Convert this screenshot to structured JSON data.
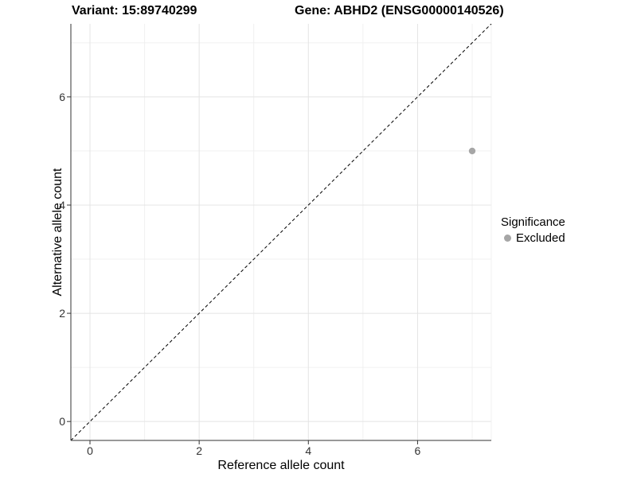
{
  "titles": {
    "variant": "Variant: 15:89740299",
    "gene": "Gene: ABHD2 (ENSG00000140526)"
  },
  "chart_data": {
    "type": "scatter",
    "xlabel": "Reference allele count",
    "ylabel": "Alternative allele count",
    "xlim": [
      -0.35,
      7.35
    ],
    "ylim": [
      -0.35,
      7.35
    ],
    "x_major_ticks": [
      0,
      2,
      4,
      6
    ],
    "y_major_ticks": [
      0,
      2,
      4,
      6
    ],
    "x_minor_gridlines": [
      1,
      3,
      5,
      7
    ],
    "y_minor_gridlines": [
      1,
      3,
      5,
      7
    ],
    "grid": true,
    "identity_line": {
      "type": "dashed",
      "equation": "y = x"
    },
    "points": [
      {
        "x": 7,
        "y": 5,
        "significance": "Excluded"
      }
    ],
    "legend": {
      "title": "Significance",
      "position": "right",
      "entries": [
        {
          "label": "Excluded",
          "color": "#a6a6a6"
        }
      ]
    },
    "colors": {
      "point": "#a6a6a6",
      "grid_major": "#e4e4e4",
      "grid_minor": "#f0f0f0",
      "axis_line": "#333333",
      "tick_mark": "#333333",
      "identity_line": "#000000",
      "background": "#ffffff"
    }
  }
}
